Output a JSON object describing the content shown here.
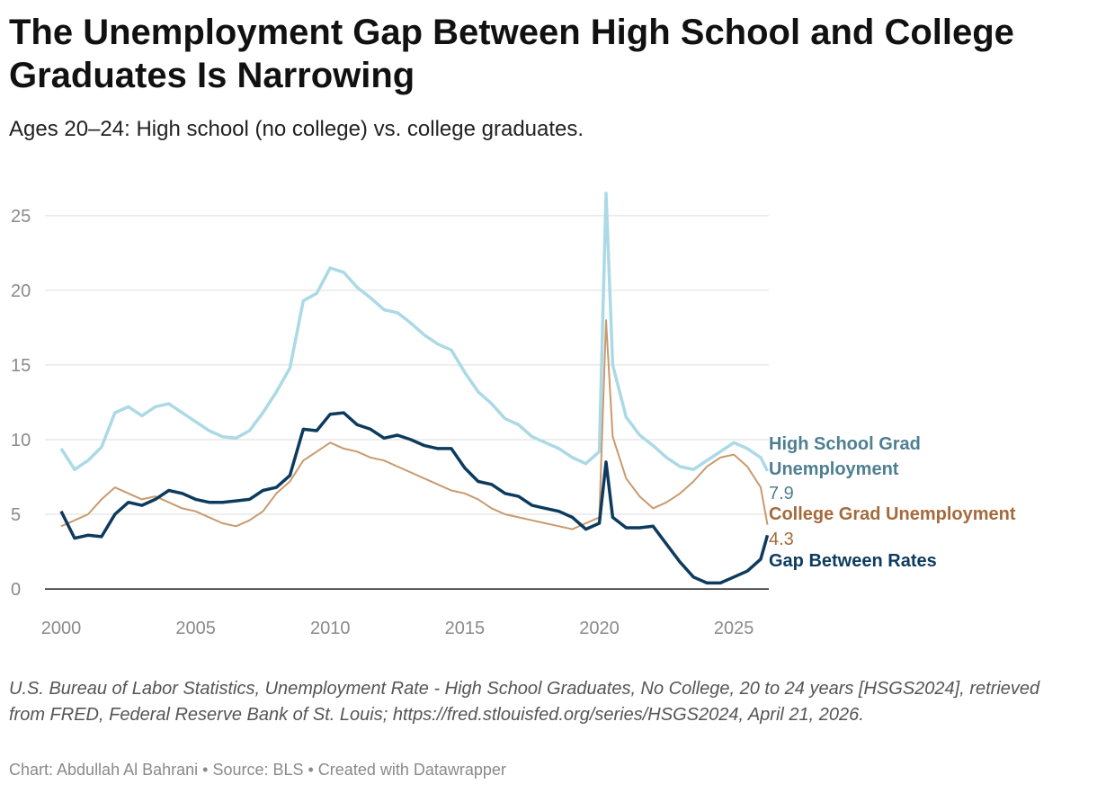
{
  "title": "The Unemployment Gap Between High School and College Graduates Is Narrowing",
  "subtitle": "Ages 20–24: High school (no college) vs. college graduates.",
  "notes": "U.S. Bureau of Labor Statistics, Unemployment Rate - High School Graduates, No College, 20 to 24 years [HSGS2024], retrieved from FRED, Federal Reserve Bank of St. Louis; https://fred.stlouisfed.org/series/HSGS2024, April 21, 2026.",
  "footer": "Chart: Abdullah Al Bahrani • Source: BLS • Created with Datawrapper",
  "colors": {
    "hs": "#abd9e6",
    "college": "#c99a6e",
    "gap": "#0d3b5e",
    "hs_label": "#4e7f90",
    "college_label": "#a56a3c",
    "gap_label": "#0d3b5e"
  },
  "chart_data": {
    "type": "line",
    "title": "The Unemployment Gap Between High School and College Graduates Is Narrowing",
    "xlabel": "",
    "ylabel": "",
    "xlim": [
      2000,
      2026.3
    ],
    "ylim": [
      -1.5,
      28
    ],
    "yticks": [
      0,
      5,
      10,
      15,
      20,
      25
    ],
    "xticks": [
      2000,
      2005,
      2010,
      2015,
      2020,
      2025
    ],
    "x": [
      2000.0,
      2000.5,
      2001.0,
      2001.5,
      2002.0,
      2002.5,
      2003.0,
      2003.5,
      2004.0,
      2004.5,
      2005.0,
      2005.5,
      2006.0,
      2006.5,
      2007.0,
      2007.5,
      2008.0,
      2008.5,
      2009.0,
      2009.5,
      2010.0,
      2010.5,
      2011.0,
      2011.5,
      2012.0,
      2012.5,
      2013.0,
      2013.5,
      2014.0,
      2014.5,
      2015.0,
      2015.5,
      2016.0,
      2016.5,
      2017.0,
      2017.5,
      2018.0,
      2018.5,
      2019.0,
      2019.5,
      2020.0,
      2020.25,
      2020.5,
      2021.0,
      2021.5,
      2022.0,
      2022.5,
      2023.0,
      2023.5,
      2024.0,
      2024.5,
      2025.0,
      2025.5,
      2026.0,
      2026.25
    ],
    "series": [
      {
        "name": "High School Grad Unemployment",
        "last_value": "7.9",
        "values": [
          9.4,
          8.0,
          8.6,
          9.5,
          11.8,
          12.2,
          11.6,
          12.2,
          12.4,
          11.8,
          11.2,
          10.6,
          10.2,
          10.1,
          10.6,
          11.8,
          13.2,
          14.8,
          19.3,
          19.8,
          21.5,
          21.2,
          20.2,
          19.5,
          18.7,
          18.5,
          17.8,
          17.0,
          16.4,
          16.0,
          14.5,
          13.2,
          12.4,
          11.4,
          11.0,
          10.2,
          9.8,
          9.4,
          8.8,
          8.4,
          9.2,
          26.5,
          15.0,
          11.5,
          10.3,
          9.6,
          8.8,
          8.2,
          8.0,
          8.6,
          9.2,
          9.8,
          9.4,
          8.8,
          7.9
        ]
      },
      {
        "name": "College Grad Unemployment",
        "last_value": "4.3",
        "values": [
          4.2,
          4.6,
          5.0,
          6.0,
          6.8,
          6.4,
          6.0,
          6.2,
          5.8,
          5.4,
          5.2,
          4.8,
          4.4,
          4.2,
          4.6,
          5.2,
          6.4,
          7.2,
          8.6,
          9.2,
          9.8,
          9.4,
          9.2,
          8.8,
          8.6,
          8.2,
          7.8,
          7.4,
          7.0,
          6.6,
          6.4,
          6.0,
          5.4,
          5.0,
          4.8,
          4.6,
          4.4,
          4.2,
          4.0,
          4.4,
          4.8,
          18.0,
          10.2,
          7.4,
          6.2,
          5.4,
          5.8,
          6.4,
          7.2,
          8.2,
          8.8,
          9.0,
          8.2,
          6.8,
          4.3
        ]
      },
      {
        "name": "Gap Between Rates",
        "last_value": "",
        "values": [
          5.2,
          3.4,
          3.6,
          3.5,
          5.0,
          5.8,
          5.6,
          6.0,
          6.6,
          6.4,
          6.0,
          5.8,
          5.8,
          5.9,
          6.0,
          6.6,
          6.8,
          7.6,
          10.7,
          10.6,
          11.7,
          11.8,
          11.0,
          10.7,
          10.1,
          10.3,
          10.0,
          9.6,
          9.4,
          9.4,
          8.1,
          7.2,
          7.0,
          6.4,
          6.2,
          5.6,
          5.4,
          5.2,
          4.8,
          4.0,
          4.4,
          8.5,
          4.8,
          4.1,
          4.1,
          4.2,
          3.0,
          1.8,
          0.8,
          0.4,
          0.4,
          0.8,
          1.2,
          2.0,
          3.6
        ]
      }
    ]
  }
}
